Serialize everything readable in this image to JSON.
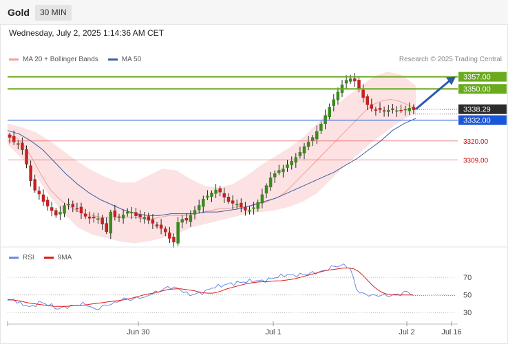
{
  "header": {
    "symbol": "Gold",
    "timeframe": "30 MIN"
  },
  "datetime": "Wednesday, July 2, 2025 1:14:36 AM CET",
  "legend": {
    "ma_label": "MA 20 + Bollinger Bands",
    "ma50_label": "MA 50",
    "rsi_label": "RSI",
    "rsi_ma_label": "9MA",
    "credit": "Research © 2025 Trading Central"
  },
  "colors": {
    "green_level": "#6aaa1e",
    "blue_level": "#3a6ce0",
    "red_level": "#e05555",
    "candle_up": "#3a8a1e",
    "candle_down": "#c62020",
    "bollinger": "#fbd8d8",
    "ma20": "#f0a0a0",
    "ma50": "#3a5ea8",
    "rsi": "#6a8ae0",
    "rsi_ma": "#e01a1a",
    "arrow": "#2a5aa8"
  },
  "chart_data": [
    {
      "type": "candlestick",
      "title": "Gold",
      "timeframe": "30 MIN",
      "x_labels": [
        "Jun 30",
        "Jul 1",
        "Jul 2",
        "Jul 16"
      ],
      "ylim": [
        3260,
        3362
      ],
      "last_price": "3338.29",
      "levels": [
        {
          "value": 3357.0,
          "label": "3357.00",
          "kind": "resistance",
          "style": "green-badge"
        },
        {
          "value": 3350.0,
          "label": "3350.00",
          "kind": "resistance",
          "style": "green-badge"
        },
        {
          "value": 3338.29,
          "label": "3338.29",
          "kind": "last-price",
          "style": "dark-badge"
        },
        {
          "value": 3332.0,
          "label": "3332.00",
          "kind": "pivot",
          "style": "blue-badge"
        },
        {
          "value": 3320.0,
          "label": "3320.00",
          "kind": "support",
          "style": "red-text"
        },
        {
          "value": 3309.0,
          "label": "3309.00",
          "kind": "support",
          "style": "red-text"
        }
      ],
      "close_path": [
        3322,
        3319,
        3318,
        3313,
        3300,
        3292,
        3290,
        3285,
        3282,
        3279,
        3276,
        3282,
        3284,
        3282,
        3281,
        3278,
        3276,
        3275,
        3276,
        3274,
        3266,
        3279,
        3276,
        3276,
        3278,
        3280,
        3277,
        3276,
        3276,
        3274,
        3272,
        3270,
        3269,
        3265,
        3260,
        3273,
        3275,
        3274,
        3279,
        3281,
        3286,
        3288,
        3290,
        3292,
        3290,
        3286,
        3284,
        3284,
        3282,
        3280,
        3280,
        3282,
        3286,
        3292,
        3298,
        3301,
        3303,
        3304,
        3307,
        3309,
        3312,
        3316,
        3319,
        3322,
        3326,
        3331,
        3337,
        3342,
        3347,
        3352,
        3355,
        3356,
        3354,
        3348,
        3342,
        3339,
        3338,
        3338,
        3337,
        3338,
        3338,
        3337,
        3338,
        3339,
        3338
      ],
      "ma20_path": [
        3324,
        3322,
        3317,
        3309,
        3300,
        3292,
        3287,
        3283,
        3280,
        3278,
        3277,
        3276,
        3276,
        3276,
        3276,
        3276,
        3275,
        3275,
        3276,
        3277,
        3277,
        3277,
        3278,
        3279,
        3280,
        3281,
        3281,
        3282,
        3282,
        3283,
        3284,
        3286,
        3288,
        3292,
        3297,
        3302,
        3307,
        3312,
        3317,
        3322,
        3327,
        3332,
        3337,
        3341,
        3343,
        3344,
        3343,
        3341,
        3338
      ],
      "ma50_path": [
        3326,
        3324,
        3320,
        3315,
        3308,
        3301,
        3295,
        3290,
        3286,
        3283,
        3280,
        3278,
        3277,
        3277,
        3278,
        3278,
        3278,
        3279,
        3279,
        3280,
        3281,
        3283,
        3285,
        3287,
        3290,
        3293,
        3296,
        3299,
        3302,
        3306,
        3310,
        3315,
        3320,
        3326,
        3330,
        3333
      ],
      "bollinger_upper": [
        3330,
        3328,
        3325,
        3320,
        3314,
        3308,
        3303,
        3299,
        3296,
        3296,
        3300,
        3304,
        3303,
        3298,
        3294,
        3293,
        3295,
        3300,
        3306,
        3311,
        3316,
        3322,
        3330,
        3338,
        3345,
        3351,
        3357,
        3360,
        3358,
        3352
      ],
      "bollinger_lower": [
        3318,
        3310,
        3300,
        3288,
        3278,
        3270,
        3266,
        3264,
        3262,
        3261,
        3262,
        3264,
        3266,
        3270,
        3272,
        3274,
        3276,
        3278,
        3279,
        3280,
        3282,
        3285,
        3290,
        3298,
        3306,
        3313,
        3320,
        3326,
        3332,
        3336
      ],
      "forecast_arrow": {
        "from": 3338.29,
        "to": 3357.0
      }
    },
    {
      "type": "line",
      "title": "RSI",
      "series": [
        {
          "name": "RSI",
          "values": [
            43,
            45,
            40,
            38,
            36,
            42,
            40,
            38,
            34,
            36,
            37,
            38,
            40,
            38,
            33,
            36,
            39,
            40,
            44,
            46,
            44,
            48,
            46,
            52,
            53,
            57,
            59,
            58,
            55,
            50,
            51,
            52,
            55,
            59,
            60,
            62,
            63,
            64,
            65,
            66,
            66,
            66,
            68,
            70,
            72,
            73,
            72,
            73,
            74,
            75,
            76,
            78,
            82,
            83,
            84,
            80,
            55,
            51,
            50,
            49,
            50,
            49,
            50,
            51,
            54,
            50
          ]
        },
        {
          "name": "9MA",
          "values": [
            45,
            44,
            43,
            41,
            40,
            39,
            38,
            37,
            37,
            37,
            38,
            38,
            39,
            40,
            41,
            42,
            43,
            44,
            45,
            47,
            49,
            51,
            52,
            54,
            56,
            57,
            57,
            56,
            55,
            53,
            52,
            52,
            54,
            57,
            59,
            61,
            63,
            64,
            65,
            65,
            66,
            66,
            67,
            68,
            70,
            72,
            74,
            76,
            78,
            79,
            80,
            81,
            80,
            76,
            68,
            60,
            54,
            51,
            50,
            50,
            50,
            50
          ]
        }
      ],
      "ylim": [
        20,
        85
      ],
      "reference_lines": [
        70,
        50,
        30
      ],
      "yticks": [
        "70",
        "50",
        "30"
      ],
      "x_labels": [
        "Jun 30",
        "Jul 1",
        "Jul 2",
        "Jul 16"
      ]
    }
  ]
}
